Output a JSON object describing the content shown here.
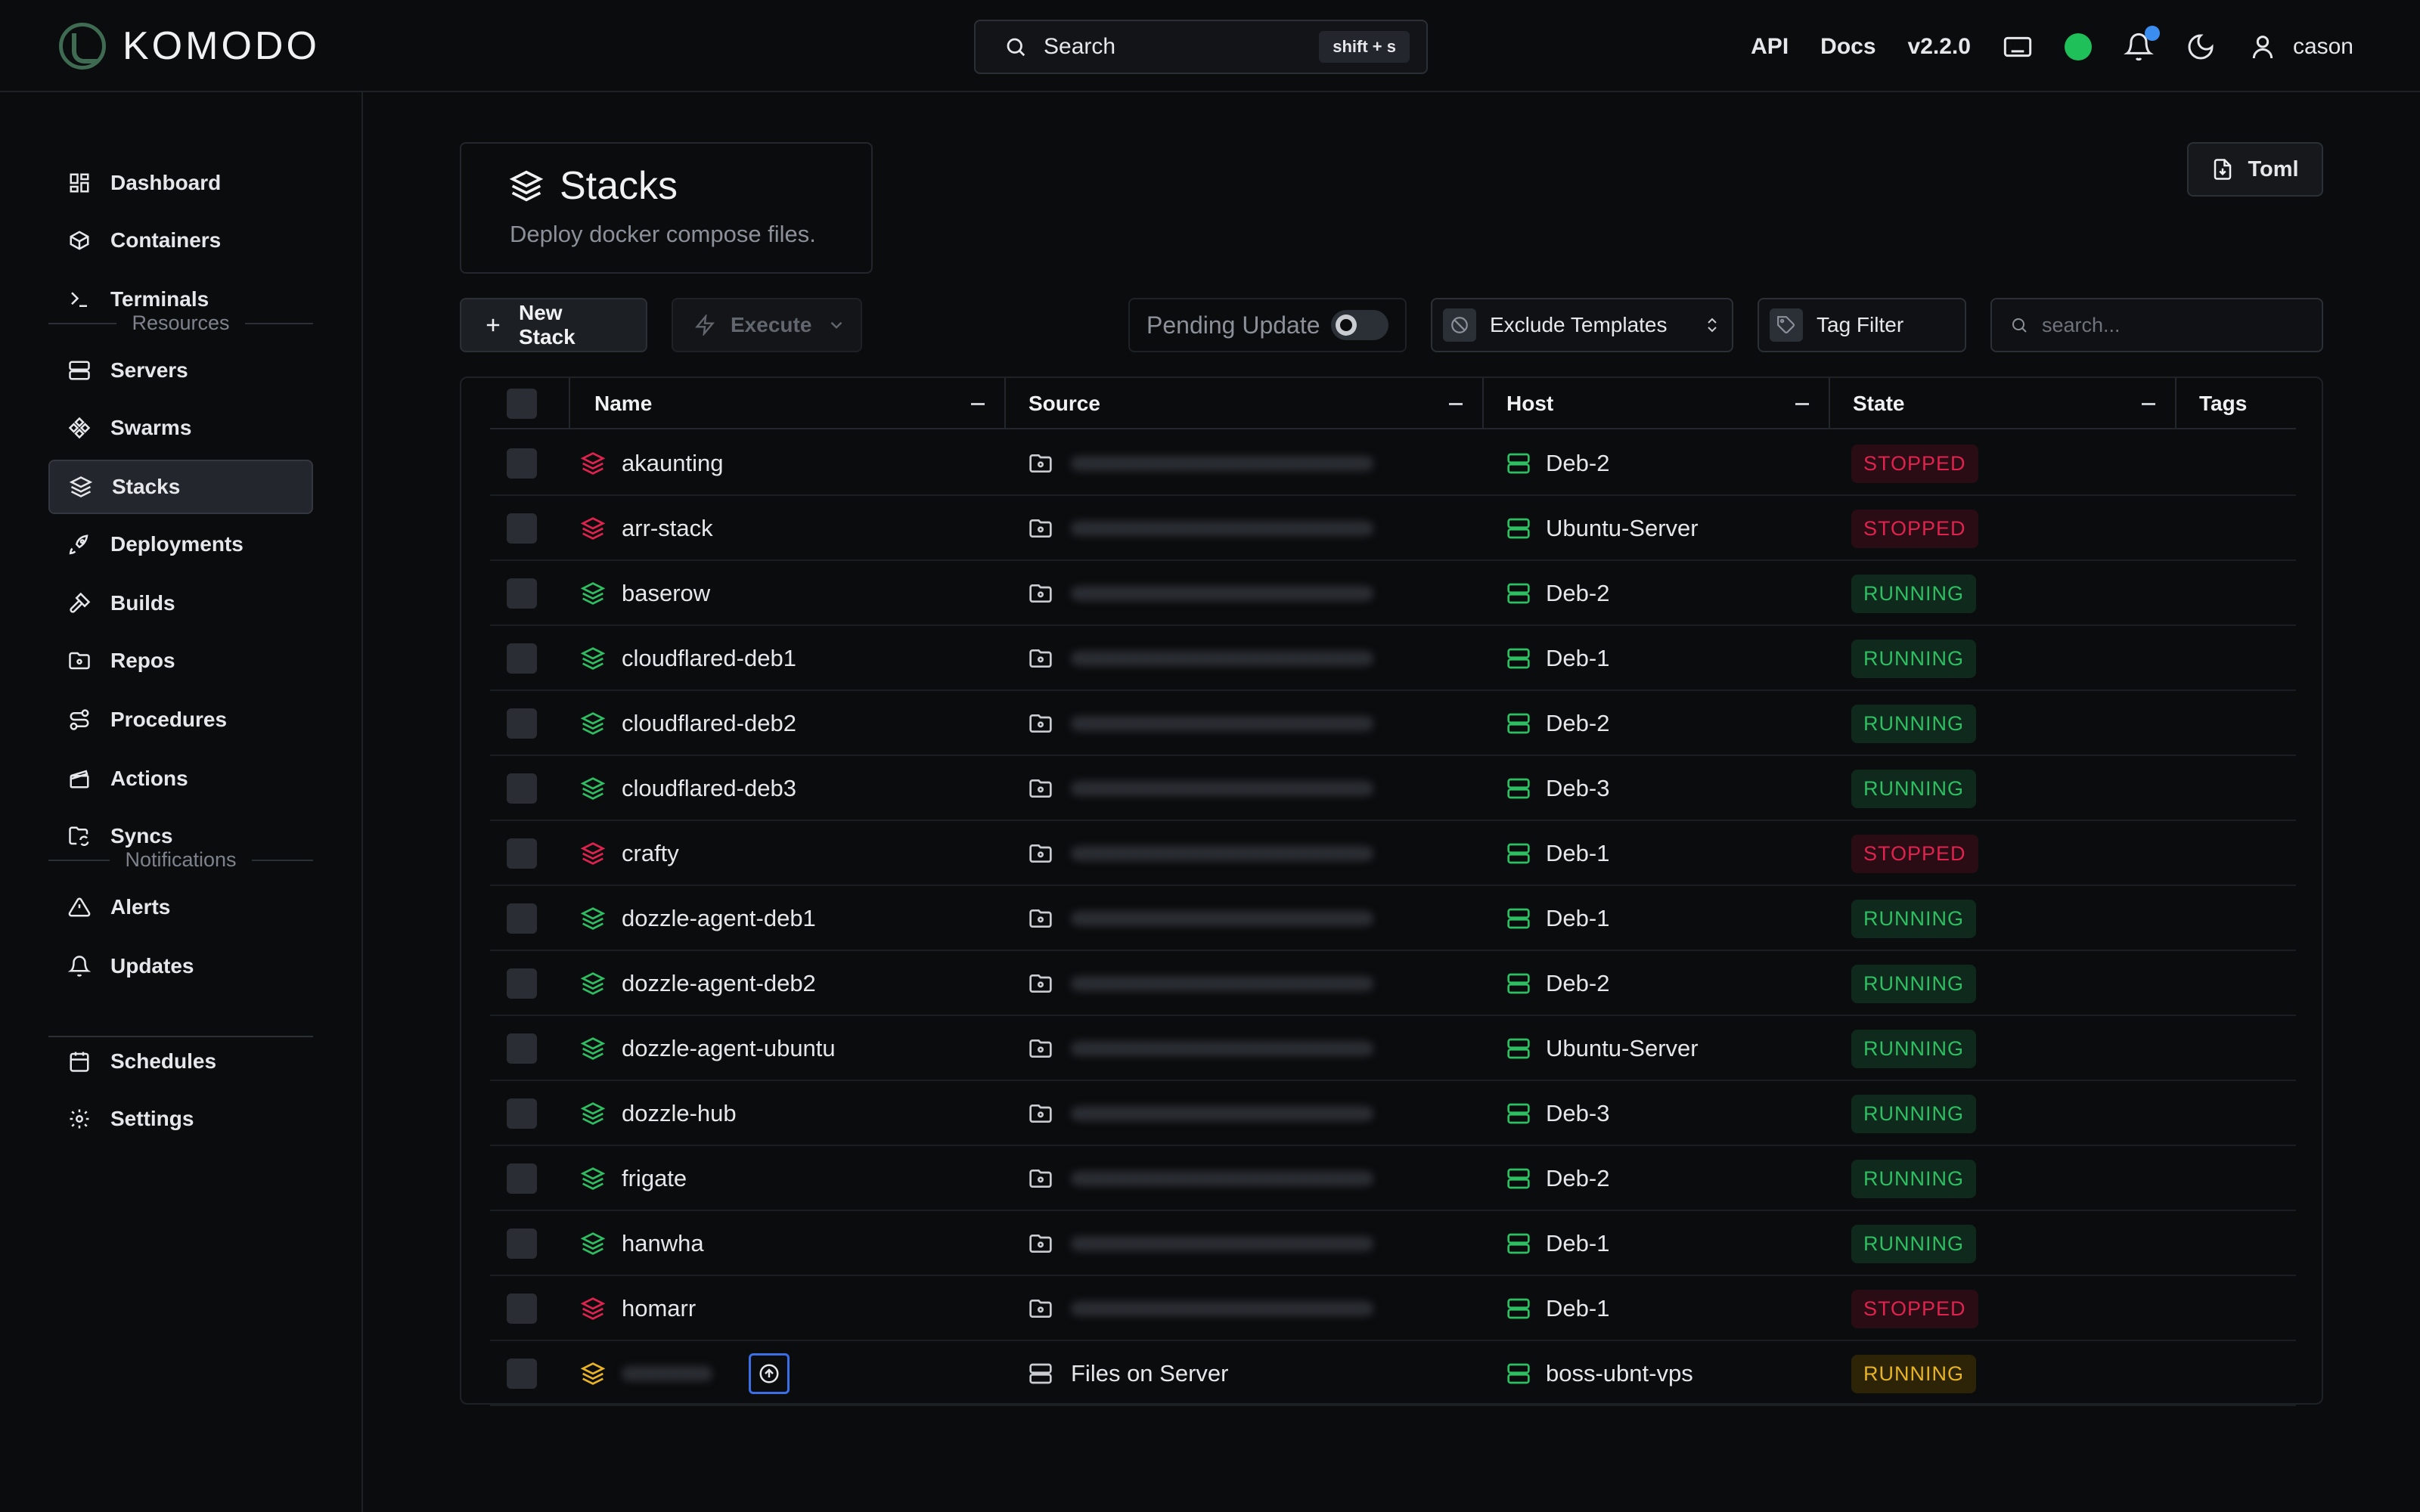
{
  "app": {
    "name": "KOMODO"
  },
  "topbar": {
    "search_label": "Search",
    "search_shortcut": "shift + s",
    "api": "API",
    "docs": "Docs",
    "version": "v2.2.0",
    "user": "cason",
    "status_color": "#1fbf5a"
  },
  "sidebar": {
    "items": [
      {
        "label": "Dashboard",
        "icon": "dashboard-icon"
      },
      {
        "label": "Containers",
        "icon": "box-icon"
      },
      {
        "label": "Terminals",
        "icon": "terminal-icon"
      },
      {
        "label": "Servers",
        "icon": "server-icon"
      },
      {
        "label": "Swarms",
        "icon": "swarm-icon"
      },
      {
        "label": "Stacks",
        "icon": "layers-icon"
      },
      {
        "label": "Deployments",
        "icon": "rocket-icon"
      },
      {
        "label": "Builds",
        "icon": "hammer-icon"
      },
      {
        "label": "Repos",
        "icon": "folder-git-icon"
      },
      {
        "label": "Procedures",
        "icon": "route-icon"
      },
      {
        "label": "Actions",
        "icon": "clapperboard-icon"
      },
      {
        "label": "Syncs",
        "icon": "folder-sync-icon"
      },
      {
        "label": "Alerts",
        "icon": "alert-triangle-icon"
      },
      {
        "label": "Updates",
        "icon": "bell-icon"
      },
      {
        "label": "Schedules",
        "icon": "calendar-icon"
      },
      {
        "label": "Settings",
        "icon": "gear-icon"
      }
    ],
    "section_resources": "Resources",
    "section_notifications": "Notifications",
    "active": "Stacks"
  },
  "page": {
    "title": "Stacks",
    "subtitle": "Deploy docker compose files.",
    "toml_button": "Toml"
  },
  "toolbar": {
    "new_stack": "New Stack",
    "execute": "Execute",
    "pending_update": "Pending Update",
    "exclude_templates": "Exclude Templates",
    "tag_filter": "Tag Filter",
    "search_placeholder": "search..."
  },
  "table": {
    "columns": [
      "Name",
      "Source",
      "Host",
      "State",
      "Tags"
    ],
    "rows": [
      {
        "name": "akaunting",
        "source": "",
        "host": "Deb-2",
        "state": "STOPPED"
      },
      {
        "name": "arr-stack",
        "source": "",
        "host": "Ubuntu-Server",
        "state": "STOPPED"
      },
      {
        "name": "baserow",
        "source": "",
        "host": "Deb-2",
        "state": "RUNNING"
      },
      {
        "name": "cloudflared-deb1",
        "source": "",
        "host": "Deb-1",
        "state": "RUNNING"
      },
      {
        "name": "cloudflared-deb2",
        "source": "",
        "host": "Deb-2",
        "state": "RUNNING"
      },
      {
        "name": "cloudflared-deb3",
        "source": "",
        "host": "Deb-3",
        "state": "RUNNING"
      },
      {
        "name": "crafty",
        "source": "",
        "host": "Deb-1",
        "state": "STOPPED"
      },
      {
        "name": "dozzle-agent-deb1",
        "source": "",
        "host": "Deb-1",
        "state": "RUNNING"
      },
      {
        "name": "dozzle-agent-deb2",
        "source": "",
        "host": "Deb-2",
        "state": "RUNNING"
      },
      {
        "name": "dozzle-agent-ubuntu",
        "source": "",
        "host": "Ubuntu-Server",
        "state": "RUNNING"
      },
      {
        "name": "dozzle-hub",
        "source": "",
        "host": "Deb-3",
        "state": "RUNNING"
      },
      {
        "name": "frigate",
        "source": "",
        "host": "Deb-2",
        "state": "RUNNING"
      },
      {
        "name": "hanwha",
        "source": "",
        "host": "Deb-1",
        "state": "RUNNING"
      },
      {
        "name": "homarr",
        "source": "",
        "host": "Deb-1",
        "state": "STOPPED"
      },
      {
        "name": "",
        "source": "Files on Server",
        "host": "boss-ubnt-vps",
        "state": "RUNNING",
        "pending_update": true
      }
    ]
  },
  "colors": {
    "running": "#2fbf63",
    "stopped": "#e0224f",
    "pending": "#e8b423",
    "accent": "#3a6fe8"
  }
}
